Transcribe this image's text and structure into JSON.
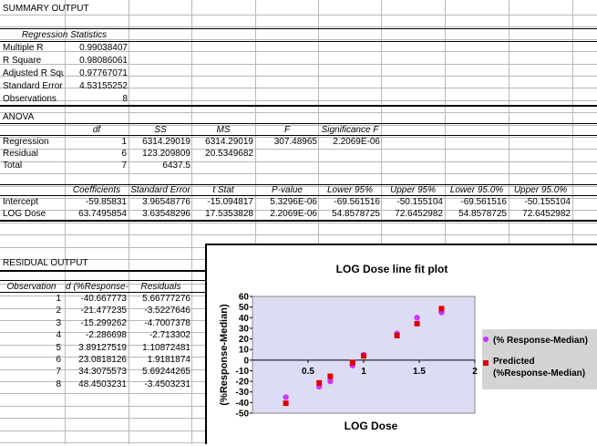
{
  "summary_title": "SUMMARY OUTPUT",
  "regstats": {
    "header": "Regression Statistics",
    "rows": [
      {
        "label": "Multiple R",
        "value": "0.99038407"
      },
      {
        "label": "R Square",
        "value": "0.98086061"
      },
      {
        "label": "Adjusted R Squ",
        "value": "0.97767071"
      },
      {
        "label": "Standard Error",
        "value": "4.53155252"
      },
      {
        "label": "Observations",
        "value": "8"
      }
    ]
  },
  "anova": {
    "title": "ANOVA",
    "headers": [
      "df",
      "SS",
      "MS",
      "F",
      "Significance F"
    ],
    "rows": [
      {
        "label": "Regression",
        "df": "1",
        "ss": "6314.29019",
        "ms": "6314.29019",
        "f": "307.48965",
        "sig": "2.2069E-06"
      },
      {
        "label": "Residual",
        "df": "6",
        "ss": "123.209809",
        "ms": "20.5349682",
        "f": "",
        "sig": ""
      },
      {
        "label": "Total",
        "df": "7",
        "ss": "6437.5",
        "ms": "",
        "f": "",
        "sig": ""
      }
    ]
  },
  "coef": {
    "headers": [
      "Coefficients",
      "Standard Error",
      "t Stat",
      "P-value",
      "Lower 95%",
      "Upper 95%",
      "Lower 95.0%",
      "Upper 95.0%"
    ],
    "rows": [
      {
        "label": "Intercept",
        "values": [
          "-59.85831",
          "3.96548776",
          "-15.094817",
          "5.3296E-06",
          "-69.561516",
          "-50.155104",
          "-69.561516",
          "-50.155104"
        ]
      },
      {
        "label": "LOG Dose",
        "values": [
          "63.7495854",
          "3.63548296",
          "17.5353828",
          "2.2069E-06",
          "54.8578725",
          "72.6452982",
          "54.8578725",
          "72.6452982"
        ]
      }
    ]
  },
  "residual": {
    "title": "RESIDUAL OUTPUT",
    "headers": [
      "Observation",
      "d (%Response-",
      "Residuals"
    ],
    "rows": [
      [
        "1",
        "-40.667773",
        "5.66777276"
      ],
      [
        "2",
        "-21.477235",
        "-3.5227646"
      ],
      [
        "3",
        "-15.299262",
        "-4.7007378"
      ],
      [
        "4",
        "-2.286698",
        "-2.713302"
      ],
      [
        "5",
        "3.89127519",
        "1.10872481"
      ],
      [
        "6",
        "23.0818126",
        "1.9181874"
      ],
      [
        "7",
        "34.3075573",
        "5.69244265"
      ],
      [
        "8",
        "48.4503231",
        "-3.4503231"
      ]
    ]
  },
  "chart_data": {
    "type": "scatter",
    "title": "LOG Dose line fit plot",
    "xlabel": "LOG Dose",
    "ylabel": "(%Response-Median)",
    "xlim": [
      0,
      2
    ],
    "ylim": [
      -50,
      60
    ],
    "xticks": [
      "0.5",
      "1",
      "1.5",
      "2"
    ],
    "yticks": [
      "60",
      "50",
      "40",
      "30",
      "20",
      "10",
      "0",
      "-10",
      "-20",
      "-30",
      "-40",
      "-50"
    ],
    "legend_position": "right",
    "series": [
      {
        "name": "(% Response-Median)",
        "color": "#cc33ff",
        "marker": "circle",
        "x": [
          0.3,
          0.6,
          0.7,
          0.9,
          1.0,
          1.3,
          1.48,
          1.7
        ],
        "y": [
          -35,
          -25,
          -20,
          -5,
          5,
          25,
          40,
          45
        ]
      },
      {
        "name": "Predicted (%Response-Median)",
        "color": "#e00000",
        "marker": "square",
        "x": [
          0.3,
          0.6,
          0.7,
          0.9,
          1.0,
          1.3,
          1.48,
          1.7
        ],
        "y": [
          -40.67,
          -21.48,
          -15.3,
          -2.29,
          3.89,
          23.08,
          34.31,
          48.45
        ]
      }
    ]
  }
}
